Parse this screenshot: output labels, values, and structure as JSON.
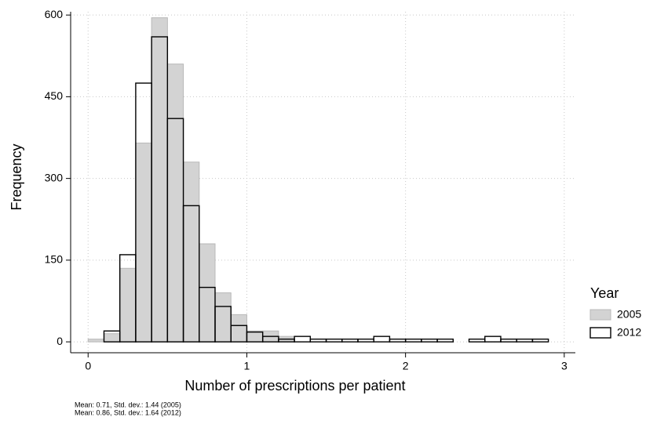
{
  "chart_data": {
    "type": "histogram",
    "xlabel": "Number of prescriptions per patient",
    "ylabel": "Frequency",
    "legend_title": "Year",
    "legend_position": "right",
    "notes": [
      "Mean: 0.71, Std. dev.: 1.44 (2005)",
      "Mean: 0.86, Std. dev.: 1.64 (2012)"
    ],
    "bins": [
      0,
      0.1,
      0.2,
      0.3,
      0.4,
      0.5,
      0.6,
      0.7,
      0.8,
      0.9,
      1,
      1.1,
      1.2,
      1.3,
      1.4,
      1.5,
      1.6,
      1.7,
      1.8,
      1.9,
      2,
      2.1,
      2.2,
      2.3,
      2.4,
      2.5,
      2.6,
      2.7,
      2.8,
      2.9
    ],
    "series": [
      {
        "name": "2005",
        "color": "#d3d3d3",
        "values": [
          5,
          15,
          135,
          365,
          595,
          510,
          330,
          180,
          90,
          50,
          20,
          20,
          10,
          0,
          0,
          0,
          0,
          0,
          0,
          0,
          0,
          0,
          0,
          0,
          0,
          0,
          0,
          0,
          0
        ]
      },
      {
        "name": "2012",
        "color": "#000000",
        "values": [
          0,
          20,
          160,
          475,
          560,
          410,
          250,
          100,
          65,
          30,
          18,
          10,
          5,
          10,
          5,
          5,
          5,
          5,
          10,
          5,
          5,
          5,
          5,
          0,
          5,
          10,
          5,
          5,
          5
        ]
      }
    ],
    "xlim": [
      -0.11,
      3.07
    ],
    "ylim": [
      -20,
      606
    ],
    "xticks": [
      0,
      1,
      2,
      3
    ],
    "yticks": [
      0,
      150,
      300,
      450,
      600
    ],
    "grid": true
  }
}
